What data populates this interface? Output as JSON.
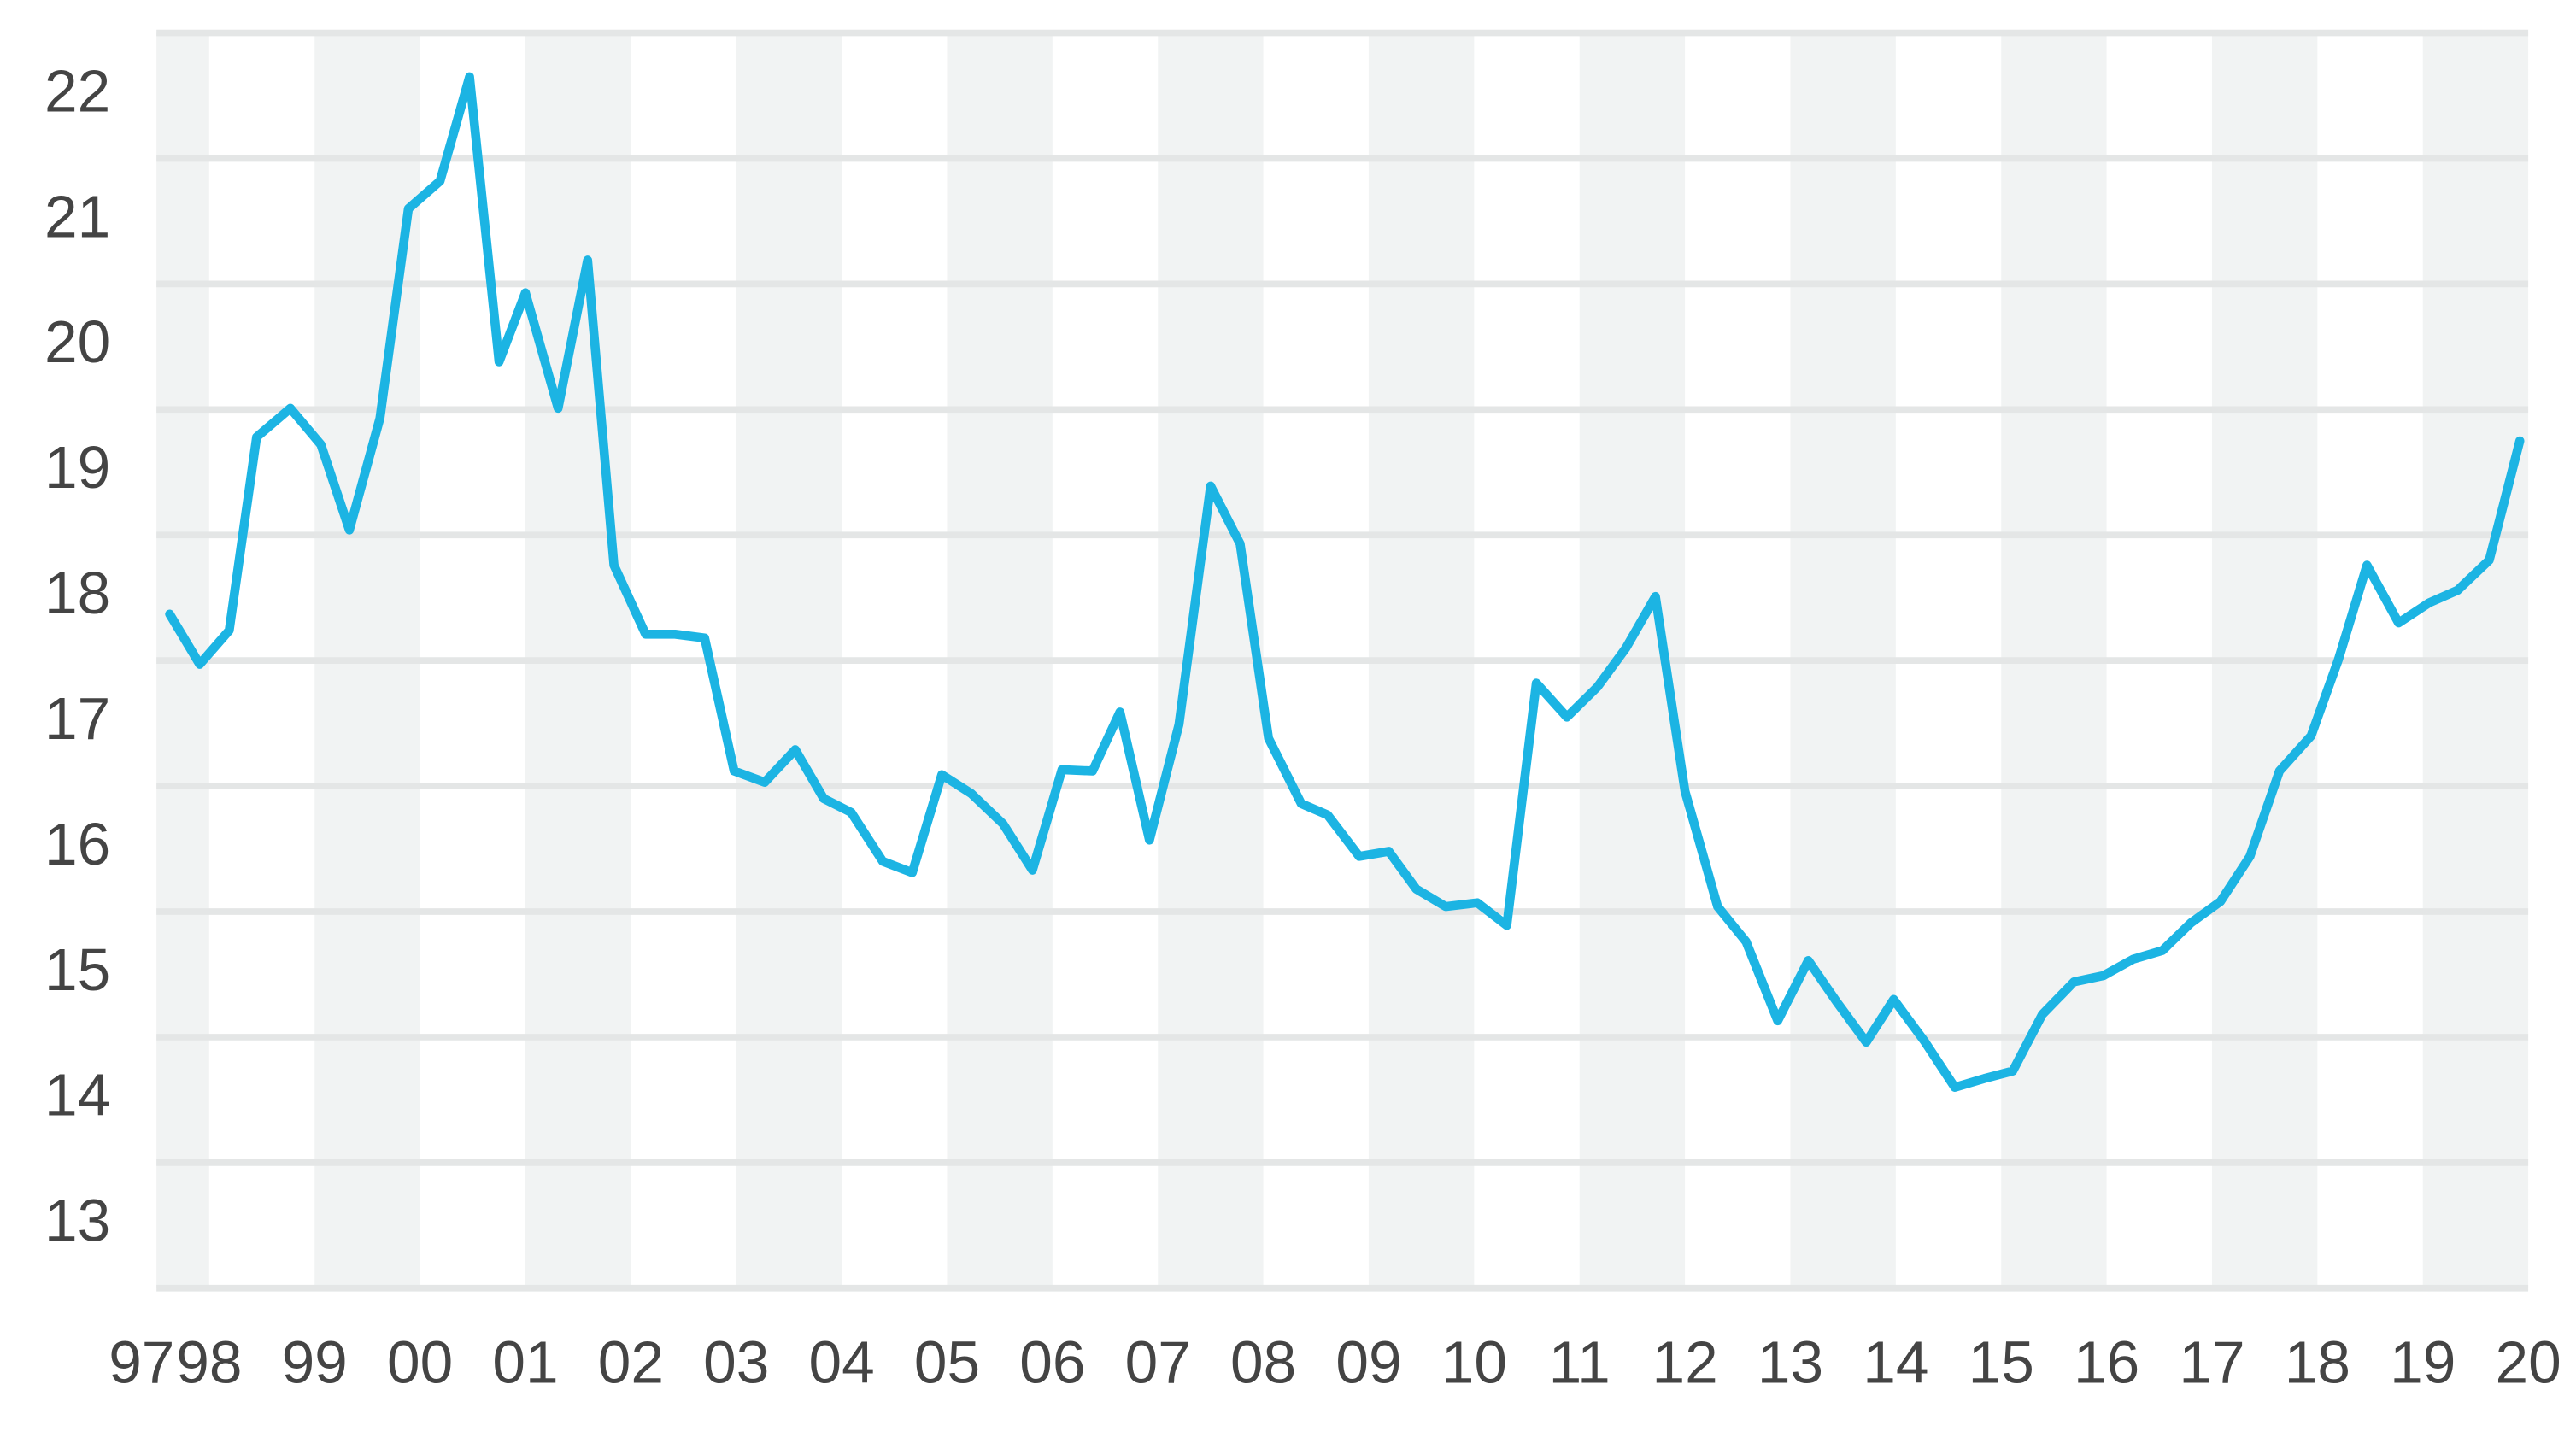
{
  "chart_data": {
    "type": "line",
    "x": [
      1997.625,
      1997.91,
      1998.19,
      1998.45,
      1998.77,
      1999.06,
      1999.33,
      1999.62,
      1999.89,
      2000.19,
      2000.47,
      2000.75,
      2001.0,
      2001.31,
      2001.59,
      2001.84,
      2002.14,
      2002.42,
      2002.7,
      2002.98,
      2003.27,
      2003.56,
      2003.83,
      2004.09,
      2004.39,
      2004.67,
      2004.95,
      2005.23,
      2005.53,
      2005.81,
      2006.09,
      2006.38,
      2006.64,
      2006.92,
      2007.2,
      2007.5,
      2007.78,
      2008.05,
      2008.36,
      2008.61,
      2008.91,
      2009.19,
      2009.45,
      2009.73,
      2010.03,
      2010.31,
      2010.59,
      2010.88,
      2011.17,
      2011.44,
      2011.72,
      2012.0,
      2012.31,
      2012.58,
      2012.88,
      2013.17,
      2013.44,
      2013.72,
      2013.98,
      2014.27,
      2014.56,
      2014.84,
      2015.11,
      2015.39,
      2015.69,
      2015.97,
      2016.25,
      2016.53,
      2016.8,
      2017.08,
      2017.36,
      2017.64,
      2017.94,
      2018.2,
      2018.47,
      2018.77,
      2019.06,
      2019.33,
      2019.63,
      2019.92
    ],
    "values": [
      17.87,
      17.47,
      17.74,
      19.28,
      19.51,
      19.22,
      18.54,
      19.43,
      21.1,
      21.32,
      22.15,
      19.88,
      20.43,
      19.51,
      20.69,
      18.26,
      17.71,
      17.71,
      17.68,
      16.62,
      16.53,
      16.79,
      16.4,
      16.29,
      15.9,
      15.81,
      16.59,
      16.44,
      16.2,
      15.83,
      16.63,
      16.62,
      17.09,
      16.07,
      16.99,
      18.89,
      18.43,
      16.88,
      16.36,
      16.27,
      15.94,
      15.98,
      15.68,
      15.54,
      15.57,
      15.39,
      17.32,
      17.05,
      17.29,
      17.6,
      18.01,
      16.46,
      15.54,
      15.26,
      14.63,
      15.11,
      14.78,
      14.46,
      14.8,
      14.47,
      14.1,
      14.17,
      14.23,
      14.68,
      14.94,
      14.99,
      15.12,
      15.19,
      15.41,
      15.58,
      15.94,
      16.62,
      16.9,
      17.51,
      18.26,
      17.8,
      17.96,
      18.06,
      18.3,
      19.25
    ],
    "color": "#1cb4e3",
    "xlim": [
      1997.5,
      2020.0
    ],
    "xticks": [
      {
        "value": 1997,
        "label": "97"
      },
      {
        "value": 1998,
        "label": "98"
      },
      {
        "value": 1999,
        "label": "99"
      },
      {
        "value": 2000,
        "label": "00"
      },
      {
        "value": 2001,
        "label": "01"
      },
      {
        "value": 2002,
        "label": "02"
      },
      {
        "value": 2003,
        "label": "03"
      },
      {
        "value": 2004,
        "label": "04"
      },
      {
        "value": 2005,
        "label": "05"
      },
      {
        "value": 2006,
        "label": "06"
      },
      {
        "value": 2007,
        "label": "07"
      },
      {
        "value": 2008,
        "label": "08"
      },
      {
        "value": 2009,
        "label": "09"
      },
      {
        "value": 2010,
        "label": "10"
      },
      {
        "value": 2011,
        "label": "11"
      },
      {
        "value": 2012,
        "label": "12"
      },
      {
        "value": 2013,
        "label": "13"
      },
      {
        "value": 2014,
        "label": "14"
      },
      {
        "value": 2015,
        "label": "15"
      },
      {
        "value": 2016,
        "label": "16"
      },
      {
        "value": 2017,
        "label": "17"
      },
      {
        "value": 2018,
        "label": "18"
      },
      {
        "value": 2019,
        "label": "19"
      },
      {
        "value": 2020,
        "label": "20"
      }
    ],
    "ylim": [
      12.5,
      22.5
    ],
    "yticks": [
      13,
      14,
      15,
      16,
      17,
      18,
      19,
      20,
      21,
      22
    ],
    "ygrid": [
      12.5,
      13.5,
      14.5,
      15.5,
      16.5,
      17.5,
      18.5,
      19.5,
      20.5,
      21.5,
      22.5
    ],
    "grid": true,
    "band_color": "#f1f3f3"
  }
}
